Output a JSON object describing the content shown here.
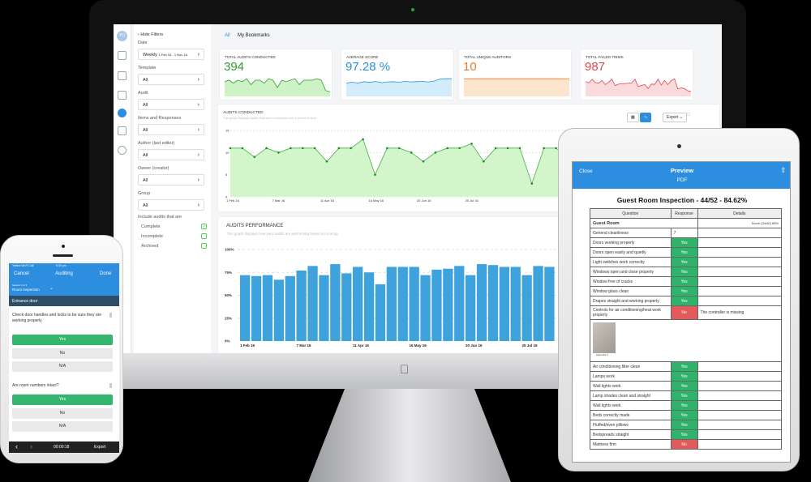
{
  "dashboard": {
    "avatar": "YO",
    "hide_filters": "Hide Filters",
    "tabs": [
      "All",
      "My Bookmarks"
    ],
    "filters": [
      {
        "label": "Date",
        "value": "Weekly",
        "range": "1 Feb 16 - 1 Nov 16"
      },
      {
        "label": "Template",
        "value": "All"
      },
      {
        "label": "Audit",
        "value": "All"
      },
      {
        "label": "Items and Responses",
        "value": "All"
      },
      {
        "label": "Author (last editor)",
        "value": "All"
      },
      {
        "label": "Owner (creator)",
        "value": "All"
      },
      {
        "label": "Group",
        "value": "All"
      }
    ],
    "include_label": "Include audits that are",
    "include": [
      {
        "label": "Complete",
        "checked": true
      },
      {
        "label": "Incomplete",
        "checked": false
      },
      {
        "label": "Archived",
        "checked": false
      }
    ],
    "kpis": [
      {
        "title": "TOTAL AUDITS CONDUCTED",
        "value": "394",
        "color": "#2e9e2e",
        "fill": "#ccf2c6",
        "spark": [
          10,
          11,
          9,
          11,
          10,
          12,
          8,
          11,
          11,
          9,
          12,
          11,
          6,
          11,
          10,
          11,
          12,
          8,
          11,
          11,
          11,
          12,
          11,
          4,
          3
        ]
      },
      {
        "title": "AVERAGE SCORE",
        "value": "97.28 %",
        "color": "#2a8fd6",
        "fill": "#d3ecfb",
        "spark": [
          5,
          5.3,
          5,
          5.5,
          5.2,
          5.6,
          5.1,
          5.4,
          5.5,
          5.3,
          5.6,
          5.4,
          5.5,
          5.6,
          5.4,
          5.7,
          6.5,
          6.6,
          6.6
        ]
      },
      {
        "title": "TOTAL UNIQUE AUDITORS",
        "value": "10",
        "color": "#ee7a22",
        "fill": "#fde4cc",
        "spark": [
          10,
          10,
          10,
          10,
          10,
          10,
          10,
          10
        ]
      },
      {
        "title": "TOTAL FAILED ITEMS",
        "value": "987",
        "color": "#e0454f",
        "fill": "#fbdadc",
        "spark": [
          6,
          5.5,
          7,
          5.6,
          5.4,
          6.5,
          4.8,
          5.8,
          7,
          4.4,
          5,
          5.2,
          5.2,
          5.4,
          5.5,
          7,
          4,
          4.5,
          4.8,
          3.2,
          5,
          4.9,
          7,
          4.6,
          6.5,
          4.8,
          6.4,
          7.2,
          3,
          3.5,
          3.2,
          2.3,
          2
        ]
      }
    ],
    "audits_conducted": {
      "title": "AUDITS CONDUCTED",
      "subtitle": "This graph displays audits that were conducted over a period of time",
      "export": "Export"
    },
    "audits_performance": {
      "title": "AUDITS PERFORMANCE",
      "subtitle": "This graph displays how your audits are performing based on scoring"
    }
  },
  "chart_data": [
    {
      "type": "area",
      "title": "AUDITS CONDUCTED",
      "ylim": [
        0,
        15
      ],
      "yticks": [
        "0",
        "5",
        "10",
        "15"
      ],
      "xticks": [
        "1 Feb 16",
        "7 Mar 16",
        "11 Apr 16",
        "16 May 16",
        "20 Jun 16",
        "25 Jul 16"
      ],
      "values": [
        11,
        11,
        9,
        11,
        10,
        11,
        11,
        11,
        8,
        11,
        11,
        13,
        5,
        11,
        11,
        10,
        8,
        10,
        11,
        11,
        12,
        8,
        11,
        11,
        11,
        3,
        11,
        11,
        9
      ],
      "color": "#2fa52f",
      "fill": "#d2f5cc",
      "grid": true
    },
    {
      "type": "bar",
      "title": "AUDITS PERFORMANCE",
      "ylim": [
        0,
        100
      ],
      "yticks": [
        "0%",
        "25%",
        "50%",
        "75%",
        "100%"
      ],
      "xticks": [
        "1 Feb 16",
        "7 Mar 16",
        "11 Apr 16",
        "16 May 16",
        "20 Jun 16",
        "25 Jul 16"
      ],
      "values": [
        72,
        71,
        72,
        67,
        71,
        77,
        82,
        72,
        84,
        74,
        81,
        75,
        62,
        81,
        81,
        81,
        72,
        78,
        79,
        82,
        72,
        84,
        83,
        81,
        81,
        72,
        82,
        81
      ],
      "color": "#3ea3dc",
      "grid": true
    }
  ],
  "ipad": {
    "close": "Close",
    "title": "Preview",
    "subtitle": "PDF",
    "report_title": "Guest Room Inspection - 44/52 - 84.62%",
    "columns": [
      "Question",
      "Response",
      "Details"
    ],
    "section": "Guest Room",
    "section_score": "Score (34/40) 85%",
    "rows": [
      {
        "q": "General cleanliness",
        "r": "7",
        "s": "plain",
        "d": ""
      },
      {
        "q": "Doors working properly",
        "r": "Yes",
        "s": "yes",
        "d": ""
      },
      {
        "q": "Doors open easily and quietly",
        "r": "Yes",
        "s": "yes",
        "d": ""
      },
      {
        "q": "Light switches work correctly",
        "r": "Yes",
        "s": "yes",
        "d": ""
      },
      {
        "q": "Windows open and close properly",
        "r": "Yes",
        "s": "yes",
        "d": ""
      },
      {
        "q": "Window free of cracks",
        "r": "Yes",
        "s": "yes",
        "d": ""
      },
      {
        "q": "Window glass clean",
        "r": "Yes",
        "s": "yes",
        "d": ""
      },
      {
        "q": "Drapes straight and working properly",
        "r": "Yes",
        "s": "yes",
        "d": ""
      },
      {
        "q": "Controls for air conditioning/heat work properly",
        "r": "No",
        "s": "no",
        "d": "The controller is missing"
      }
    ],
    "appendix": "Appendix 1",
    "rows2": [
      {
        "q": "Air conditioning filter clean",
        "r": "Yes",
        "s": "yes"
      },
      {
        "q": "Lamps work",
        "r": "Yes",
        "s": "yes"
      },
      {
        "q": "Wall lights work",
        "r": "Yes",
        "s": "yes"
      },
      {
        "q": "Lamp shades clean and straight",
        "r": "Yes",
        "s": "yes"
      },
      {
        "q": "Wall lights work",
        "r": "Yes",
        "s": "yes"
      },
      {
        "q": "Beds correctly made",
        "r": "Yes",
        "s": "yes"
      },
      {
        "q": "Fluffed/even pillows",
        "r": "Yes",
        "s": "yes"
      },
      {
        "q": "Bedspreads straight",
        "r": "Yes",
        "s": "yes"
      },
      {
        "q": "Mattress firm",
        "r": "No",
        "s": "no"
      }
    ]
  },
  "iphone": {
    "status_carrier": "Telstra Wi-Fi Call",
    "status_time": "9:30 pm",
    "cancel": "Cancel",
    "title": "Auditing",
    "done": "Done",
    "section_count": "Section 3 of 3",
    "section_name": "Room Inspection",
    "subsection": "Entrance door",
    "questions": [
      {
        "text": "Check door handles and locks to be sure they are working properly",
        "options": [
          "Yes",
          "No",
          "N/A"
        ],
        "selected": "Yes"
      },
      {
        "text": "Are room numbers intact?",
        "options": [
          "Yes",
          "No",
          "N/A"
        ],
        "selected": "Yes"
      }
    ],
    "timer": "00:00:18",
    "export": "Export"
  },
  "colors": {
    "primary_blue": "#2d8ee0",
    "yes_green": "#35b66f",
    "no_red": "#e25a5a"
  }
}
